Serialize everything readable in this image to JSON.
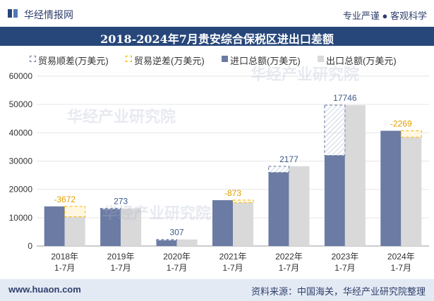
{
  "header": {
    "brand": "华经情报网",
    "slogan": "专业严谨 ● 客观科学"
  },
  "watermarks": [
    "华经产业研究院",
    "华经产业研究院",
    "华经产业研究院"
  ],
  "footer": {
    "left": "www.huaon.com",
    "right": "资料来源：中国海关，华经产业研究院整理"
  },
  "colors": {
    "title_bg": "#27477a",
    "import_export": "#6b7ba3",
    "export": "#d9d9d9",
    "surplus": "#6b7ba3",
    "deficit": "#f5b700"
  },
  "chart_data": {
    "type": "bar",
    "title": "2018-2024年7月贵安综合保税区进出口差额",
    "categories": [
      "2018年\n1-7月",
      "2019年\n1-7月",
      "2020年\n1-7月",
      "2021年\n1-7月",
      "2022年\n1-7月",
      "2023年\n1-7月",
      "2024年\n1-7月"
    ],
    "ylim": [
      0,
      60000
    ],
    "yticks": [
      0,
      10000,
      20000,
      30000,
      40000,
      50000,
      60000
    ],
    "legend": [
      "贸易顺差(万美元)",
      "贸易逆差(万美元)",
      "进口总额(万美元)",
      "出口总额(万美元)"
    ],
    "series": [
      {
        "name": "进口总额(万美元)",
        "values": [
          14000,
          13000,
          2000,
          16200,
          26000,
          32000,
          40700
        ]
      },
      {
        "name": "出口总额(万美元)",
        "values": [
          10328,
          13273,
          2307,
          15327,
          28177,
          49746,
          38431
        ]
      }
    ],
    "balance": [
      -3672,
      273,
      307,
      -873,
      2177,
      17746,
      -2269
    ],
    "balance_labels": [
      "-3672",
      "273",
      "307",
      "-873",
      "2177",
      "17746",
      "-2269"
    ]
  }
}
